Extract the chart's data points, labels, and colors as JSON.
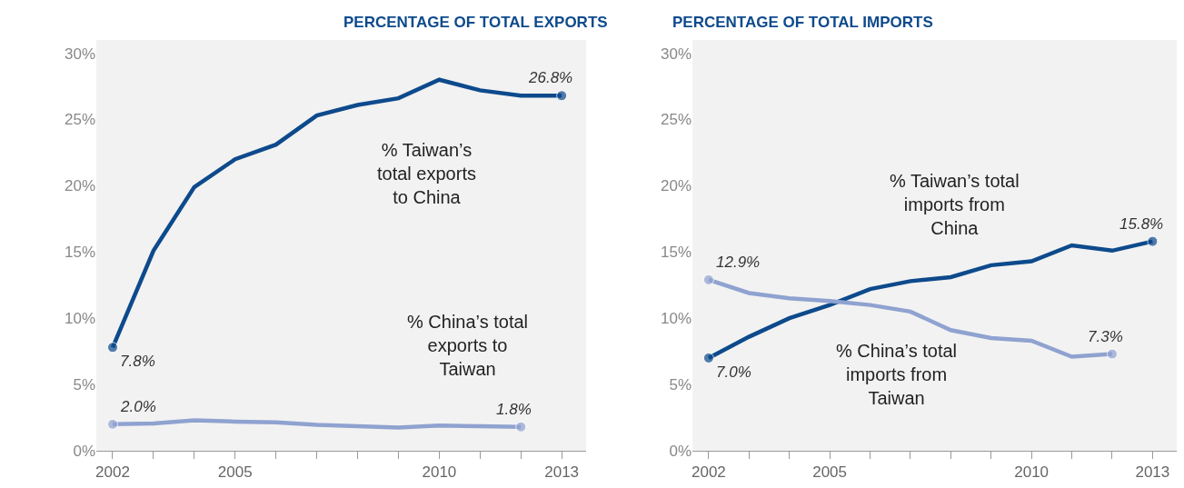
{
  "chart_data": [
    {
      "type": "line",
      "title": "PERCENTAGE OF TOTAL EXPORTS",
      "x": [
        2002,
        2003,
        2004,
        2005,
        2006,
        2007,
        2008,
        2009,
        2010,
        2011,
        2012,
        2013
      ],
      "xlim": [
        2001.6,
        2013.6
      ],
      "xticks": [
        2002,
        {
          "value": 2003,
          "label": null
        },
        {
          "value": 2004,
          "label": null
        },
        2005,
        {
          "value": 2006,
          "label": null
        },
        {
          "value": 2007,
          "label": null
        },
        {
          "value": 2008,
          "label": null
        },
        {
          "value": 2009,
          "label": null
        },
        2010,
        {
          "value": 2011,
          "label": null
        },
        {
          "value": 2012,
          "label": null
        },
        2013
      ],
      "ylim": [
        0,
        31
      ],
      "yticks": [
        {
          "value": 0,
          "label": "0%"
        },
        {
          "value": 5,
          "label": "5%"
        },
        {
          "value": 10,
          "label": "10%"
        },
        {
          "value": 15,
          "label": "15%"
        },
        {
          "value": 20,
          "label": "20%"
        },
        {
          "value": 25,
          "label": "25%"
        },
        {
          "value": 30,
          "label": "30%"
        }
      ],
      "grid": false,
      "legend": false,
      "line_style": "solid",
      "series": [
        {
          "name": "% Taiwan’s\ntotal exports\nto China",
          "color": "#0d4a8c",
          "values": [
            7.8,
            15.1,
            19.9,
            22.0,
            23.1,
            25.3,
            26.1,
            26.6,
            28.0,
            27.2,
            26.8,
            26.8
          ],
          "value_labels": [
            "7.8%",
            null,
            null,
            null,
            null,
            null,
            null,
            null,
            null,
            null,
            null,
            "26.8%"
          ]
        },
        {
          "name": "% China’s total\nexports to\nTaiwan",
          "color": "#8fa2d0",
          "values": [
            2.0,
            2.05,
            2.3,
            2.2,
            2.15,
            1.95,
            1.85,
            1.75,
            1.9,
            1.85,
            1.8,
            null
          ],
          "value_labels": [
            "2.0%",
            null,
            null,
            null,
            null,
            null,
            null,
            null,
            null,
            null,
            "1.8%",
            null
          ]
        }
      ]
    },
    {
      "type": "line",
      "title": "PERCENTAGE OF TOTAL IMPORTS",
      "x": [
        2002,
        2003,
        2004,
        2005,
        2006,
        2007,
        2008,
        2009,
        2010,
        2011,
        2012,
        2013
      ],
      "xlim": [
        2001.6,
        2013.6
      ],
      "xticks": [
        2002,
        {
          "value": 2003,
          "label": null
        },
        {
          "value": 2004,
          "label": null
        },
        2005,
        {
          "value": 2006,
          "label": null
        },
        {
          "value": 2007,
          "label": null
        },
        {
          "value": 2008,
          "label": null
        },
        {
          "value": 2009,
          "label": null
        },
        2010,
        {
          "value": 2011,
          "label": null
        },
        {
          "value": 2012,
          "label": null
        },
        2013
      ],
      "ylim": [
        0,
        31
      ],
      "yticks": [
        {
          "value": 0,
          "label": "0%"
        },
        {
          "value": 5,
          "label": "5%"
        },
        {
          "value": 10,
          "label": "10%"
        },
        {
          "value": 15,
          "label": "15%"
        },
        {
          "value": 20,
          "label": "20%"
        },
        {
          "value": 25,
          "label": "25%"
        },
        {
          "value": 30,
          "label": "30%"
        }
      ],
      "grid": false,
      "legend": false,
      "line_style": "solid",
      "series": [
        {
          "name": "% Taiwan’s total\nimports from\nChina",
          "color": "#0d4a8c",
          "values": [
            7.0,
            8.6,
            10.0,
            11.0,
            12.2,
            12.8,
            13.1,
            14.0,
            14.3,
            15.5,
            15.1,
            15.8
          ],
          "value_labels": [
            "7.0%",
            null,
            null,
            null,
            null,
            null,
            null,
            null,
            null,
            null,
            null,
            "15.8%"
          ]
        },
        {
          "name": "% China’s total\nimports from\nTaiwan",
          "color": "#8fa2d0",
          "values": [
            12.9,
            11.9,
            11.5,
            11.3,
            11.0,
            10.5,
            9.1,
            8.5,
            8.3,
            7.1,
            7.3,
            null
          ],
          "value_labels": [
            "12.9%",
            null,
            null,
            null,
            null,
            null,
            null,
            null,
            null,
            null,
            "7.3%",
            null
          ]
        }
      ]
    }
  ]
}
